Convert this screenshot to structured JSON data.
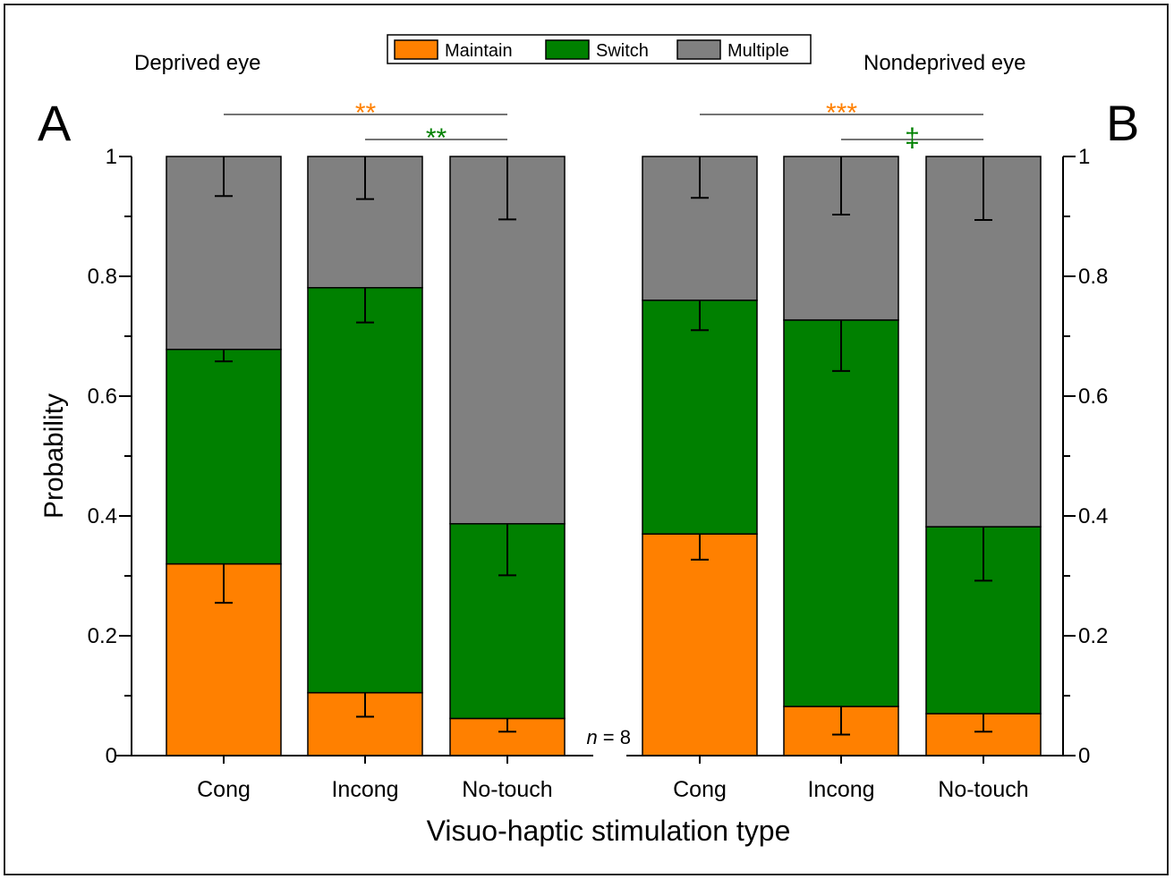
{
  "chart_data": [
    {
      "type": "bar",
      "stacked": true,
      "panel_label": "A",
      "subtitle": "Deprived eye",
      "categories": [
        "Cong",
        "Incong",
        "No-touch"
      ],
      "series": [
        {
          "name": "Maintain",
          "values": [
            0.32,
            0.105,
            0.062
          ],
          "errors": [
            0.065,
            0.04,
            0.022
          ]
        },
        {
          "name": "Switch",
          "values": [
            0.358,
            0.676,
            0.325
          ],
          "errors": [
            0.02,
            0.058,
            0.086
          ]
        },
        {
          "name": "Multiple",
          "values": [
            0.322,
            0.219,
            0.613
          ],
          "errors": [
            0.066,
            0.071,
            0.105
          ]
        }
      ],
      "ylabel": "Probability",
      "ylim": [
        0,
        1
      ],
      "yticks": [
        "0",
        "0.2",
        "0.4",
        "0.6",
        "0.8",
        "1"
      ],
      "significance": [
        {
          "from": "Cong",
          "to": "No-touch",
          "label": "**",
          "series": "Maintain"
        },
        {
          "from": "Incong",
          "to": "No-touch",
          "label": "**",
          "series": "Switch"
        }
      ],
      "annotation": {
        "n_label": "n",
        "n_value": " = 8"
      }
    },
    {
      "type": "bar",
      "stacked": true,
      "panel_label": "B",
      "subtitle": "Nondeprived eye",
      "categories": [
        "Cong",
        "Incong",
        "No-touch"
      ],
      "series": [
        {
          "name": "Maintain",
          "values": [
            0.37,
            0.082,
            0.07
          ],
          "errors": [
            0.043,
            0.047,
            0.03
          ]
        },
        {
          "name": "Switch",
          "values": [
            0.39,
            0.645,
            0.312
          ],
          "errors": [
            0.05,
            0.085,
            0.09
          ]
        },
        {
          "name": "Multiple",
          "values": [
            0.24,
            0.273,
            0.618
          ],
          "errors": [
            0.069,
            0.097,
            0.106
          ]
        }
      ],
      "ylim": [
        0,
        1
      ],
      "yticks": [
        "0",
        "0.2",
        "0.4",
        "0.6",
        "0.8",
        "1"
      ],
      "significance": [
        {
          "from": "Cong",
          "to": "No-touch",
          "label": "***",
          "series": "Maintain"
        },
        {
          "from": "Incong",
          "to": "No-touch",
          "label": "‡",
          "series": "Switch"
        }
      ]
    }
  ],
  "legend": [
    {
      "name": "Maintain",
      "color": "#ff8000"
    },
    {
      "name": "Switch",
      "color": "#008000"
    },
    {
      "name": "Multiple",
      "color": "#808080"
    }
  ],
  "xlabel": "Visuo-haptic stimulation type",
  "colors": {
    "Maintain": "#ff8000",
    "Switch": "#008000",
    "Multiple": "#808080"
  }
}
